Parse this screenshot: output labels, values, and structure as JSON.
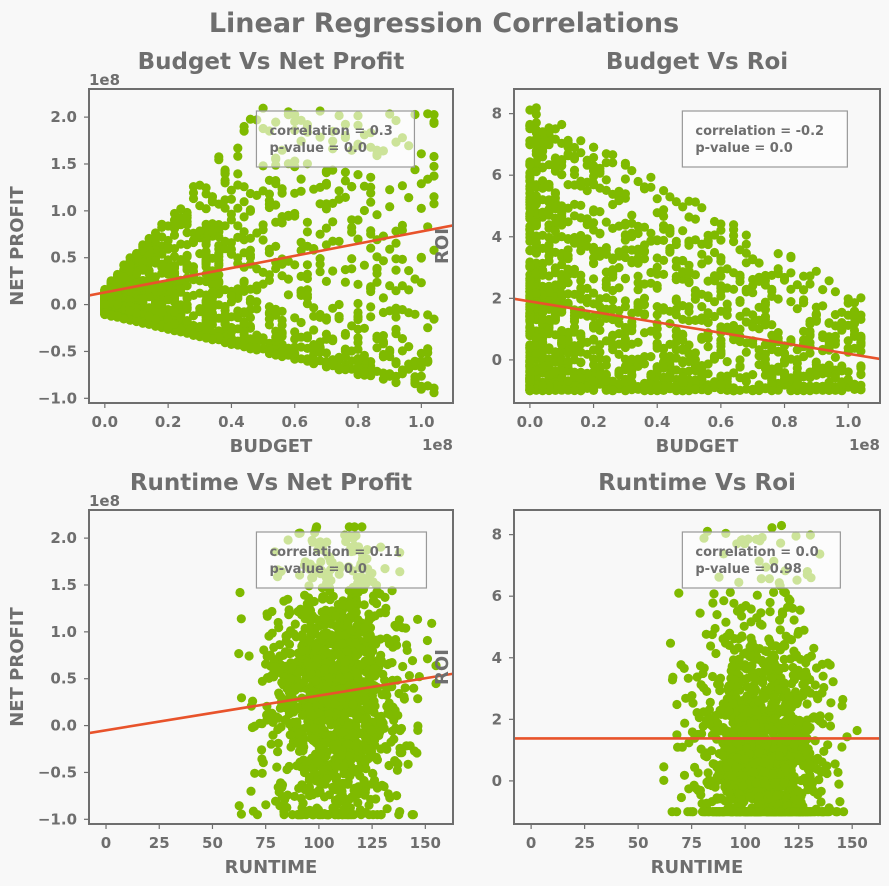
{
  "title": "Linear Regression Correlations",
  "colors": {
    "points": "#7fba00",
    "fit_line": "#e8532b",
    "text": "#6e6e6e",
    "frame": "#6e6e6e",
    "background": "#f8f8f8",
    "annotation_box": "#999999"
  },
  "chart_data": [
    {
      "type": "scatter",
      "title": "Budget Vs Net Profit",
      "xlabel": "BUDGET",
      "ylabel": "NET PROFIT",
      "x_offset_label": "1e8",
      "y_offset_label": "1e8",
      "xlim": [
        -0.05,
        1.1
      ],
      "ylim": [
        -1.05,
        2.3
      ],
      "xticks": [
        0.0,
        0.2,
        0.4,
        0.6,
        0.8,
        1.0
      ],
      "xtick_labels": [
        "0.0",
        "0.2",
        "0.4",
        "0.6",
        "0.8",
        "1.0"
      ],
      "yticks": [
        -1.0,
        -0.5,
        0.0,
        0.5,
        1.0,
        1.5,
        2.0
      ],
      "ytick_labels": [
        "−1.0",
        "−0.5",
        "0.0",
        "0.5",
        "1.0",
        "1.5",
        "2.0"
      ],
      "regression": {
        "slope": 0.65,
        "intercept": 0.13
      },
      "annotation": {
        "lines": [
          "correlation = 0.3",
          "p-value = 0.0"
        ],
        "position": "top-right"
      },
      "scatter_shape": {
        "xmin": 0.0,
        "xmax": 1.05,
        "lower_base": -0.1,
        "lower_slope": -0.8,
        "upper_base": 0.15,
        "upper_slope": 4.0,
        "upper_cap": 2.1,
        "xskew": 2.2,
        "n": 1500
      }
    },
    {
      "type": "scatter",
      "title": "Budget Vs Roi",
      "xlabel": "BUDGET",
      "ylabel": "ROI",
      "x_offset_label": "1e8",
      "y_offset_label": "",
      "xlim": [
        -0.05,
        1.1
      ],
      "ylim": [
        -1.4,
        8.8
      ],
      "xticks": [
        0.0,
        0.2,
        0.4,
        0.6,
        0.8,
        1.0
      ],
      "xtick_labels": [
        "0.0",
        "0.2",
        "0.4",
        "0.6",
        "0.8",
        "1.0"
      ],
      "yticks": [
        0,
        2,
        4,
        6,
        8
      ],
      "ytick_labels": [
        "0",
        "2",
        "4",
        "6",
        "8"
      ],
      "regression": {
        "slope": -1.7,
        "intercept": 1.9
      },
      "annotation": {
        "lines": [
          "correlation = -0.2",
          "p-value = 0.0"
        ],
        "position": "top-right"
      },
      "scatter_shape": {
        "xmin": 0.0,
        "xmax": 1.05,
        "ymin": -1.0,
        "upper_start": 8.3,
        "upper_end": 2.0,
        "xskew": 2.0,
        "n": 1500
      }
    },
    {
      "type": "scatter",
      "title": "Runtime Vs Net Profit",
      "xlabel": "RUNTIME",
      "ylabel": "NET PROFIT",
      "x_offset_label": "",
      "y_offset_label": "1e8",
      "xlim": [
        -8,
        163
      ],
      "ylim": [
        -1.05,
        2.3
      ],
      "xticks": [
        0,
        25,
        50,
        75,
        100,
        125,
        150
      ],
      "xtick_labels": [
        "0",
        "25",
        "50",
        "75",
        "100",
        "125",
        "150"
      ],
      "yticks": [
        -1.0,
        -0.5,
        0.0,
        0.5,
        1.0,
        1.5,
        2.0
      ],
      "ytick_labels": [
        "−1.0",
        "−0.5",
        "0.0",
        "0.5",
        "1.0",
        "1.5",
        "2.0"
      ],
      "regression": {
        "slope": 0.0037,
        "intercept": -0.05
      },
      "annotation": {
        "lines": [
          "correlation = 0.11",
          "p-value = 0.0"
        ],
        "position": "top-right"
      },
      "scatter_shape": {
        "xcenter": 108,
        "xspread": 15,
        "xmin": 62,
        "xmax": 155,
        "ymin": -0.95,
        "ymax": 2.12,
        "ypeak": 0.3,
        "n": 1400
      }
    },
    {
      "type": "scatter",
      "title": "Runtime Vs Roi",
      "xlabel": "RUNTIME",
      "ylabel": "ROI",
      "x_offset_label": "",
      "y_offset_label": "",
      "xlim": [
        -8,
        163
      ],
      "ylim": [
        -1.4,
        8.8
      ],
      "xticks": [
        0,
        25,
        50,
        75,
        100,
        125,
        150
      ],
      "xtick_labels": [
        "0",
        "25",
        "50",
        "75",
        "100",
        "125",
        "150"
      ],
      "yticks": [
        0,
        2,
        4,
        6,
        8
      ],
      "ytick_labels": [
        "0",
        "2",
        "4",
        "6",
        "8"
      ],
      "regression": {
        "slope": 0.0,
        "intercept": 1.38
      },
      "annotation": {
        "lines": [
          "correlation = 0.0",
          "p-value = 0.98"
        ],
        "position": "top-right"
      },
      "scatter_shape": {
        "xcenter": 108,
        "xspread": 15,
        "xmin": 62,
        "xmax": 155,
        "ymin": -1.0,
        "ymax": 8.3,
        "ypeak": 0.5,
        "n": 1400
      }
    }
  ]
}
